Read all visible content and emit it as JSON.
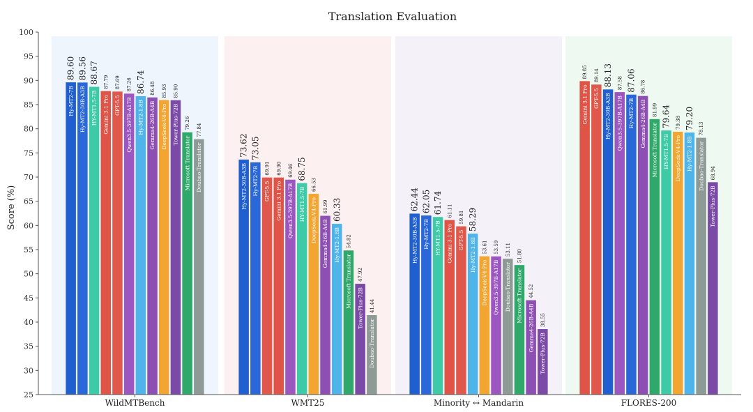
{
  "chart_data": {
    "type": "bar",
    "title": "Translation Evaluation",
    "ylabel": "Score (%)",
    "xlabel": "",
    "ylim": [
      25,
      100
    ],
    "yticks": [
      25,
      30,
      35,
      40,
      45,
      50,
      55,
      60,
      65,
      70,
      75,
      80,
      85,
      90,
      95,
      100
    ],
    "grid": false,
    "group_backgrounds": [
      "#eef5fc",
      "#fcf1f0",
      "#f4f1f9",
      "#eefaf1"
    ],
    "groups": [
      {
        "name": "WildMTBench",
        "bars": [
          {
            "model": "Hy-MT2-7B",
            "value": 89.6,
            "color": "#1f5fcf",
            "highlight": true
          },
          {
            "model": "Hy-MT2-30B-A3B",
            "value": 89.56,
            "color": "#2a67d8",
            "highlight": true
          },
          {
            "model": "HY-MT1.5-7B",
            "value": 88.67,
            "color": "#3ec9a7",
            "highlight": true
          },
          {
            "model": "Gemini 3.1 Pro",
            "value": 87.79,
            "color": "#df5447",
            "highlight": false
          },
          {
            "model": "GPT-5.5",
            "value": 87.69,
            "color": "#e0584b",
            "highlight": false
          },
          {
            "model": "Qwen3.5-397B-A17B",
            "value": 87.26,
            "color": "#9c56c0",
            "highlight": false
          },
          {
            "model": "Hy-MT2-1.8B",
            "value": 86.74,
            "color": "#4fb4ea",
            "highlight": true
          },
          {
            "model": "Gemma4-26B-A4B",
            "value": 86.48,
            "color": "#8e4fb5",
            "highlight": false
          },
          {
            "model": "DeepSeek-V4-Pro",
            "value": 85.93,
            "color": "#f2a531",
            "highlight": false
          },
          {
            "model": "Tower-Plus-72B",
            "value": 85.9,
            "color": "#7b4aa6",
            "highlight": false
          },
          {
            "model": "Microsoft Translator",
            "value": 79.26,
            "color": "#2fa86a",
            "highlight": false
          },
          {
            "model": "Doubao-Translator",
            "value": 77.84,
            "color": "#8e9a96",
            "highlight": false
          }
        ]
      },
      {
        "name": "WMT25",
        "bars": [
          {
            "model": "Hy-MT2-30B-A3B",
            "value": 73.62,
            "color": "#1f5fcf",
            "highlight": true
          },
          {
            "model": "Hy-MT2-7B",
            "value": 73.05,
            "color": "#2a67d8",
            "highlight": true
          },
          {
            "model": "GPT-5.5",
            "value": 69.91,
            "color": "#e0584b",
            "highlight": false
          },
          {
            "model": "Gemini 3.1 Pro",
            "value": 69.9,
            "color": "#df5447",
            "highlight": false
          },
          {
            "model": "Qwen3.5-397B-A17B",
            "value": 69.46,
            "color": "#9c56c0",
            "highlight": false
          },
          {
            "model": "HY-MT1.5-7B",
            "value": 68.75,
            "color": "#3ec9a7",
            "highlight": true
          },
          {
            "model": "DeepSeek-V4-Pro",
            "value": 66.53,
            "color": "#f2a531",
            "highlight": false
          },
          {
            "model": "Gemma4-26B-A4B",
            "value": 61.99,
            "color": "#8e4fb5",
            "highlight": false
          },
          {
            "model": "Hy-MT2-1.8B",
            "value": 60.33,
            "color": "#4fb4ea",
            "highlight": true
          },
          {
            "model": "Microsoft Translator",
            "value": 54.82,
            "color": "#2fa86a",
            "highlight": false
          },
          {
            "model": "Tower-Plus-72B",
            "value": 47.92,
            "color": "#7b4aa6",
            "highlight": false
          },
          {
            "model": "Doubao-Translator",
            "value": 41.44,
            "color": "#8e9a96",
            "highlight": false
          }
        ]
      },
      {
        "name": "Minority ↔ Mandarin",
        "bars": [
          {
            "model": "Hy-MT2-30B-A3B",
            "value": 62.44,
            "color": "#1f5fcf",
            "highlight": true
          },
          {
            "model": "Hy-MT2-7B",
            "value": 62.05,
            "color": "#2a67d8",
            "highlight": true
          },
          {
            "model": "HY-MT1.5-7B",
            "value": 61.74,
            "color": "#3ec9a7",
            "highlight": true
          },
          {
            "model": "Gemini 3.1 Pro",
            "value": 61.11,
            "color": "#df5447",
            "highlight": false
          },
          {
            "model": "GPT-5.5",
            "value": 59.81,
            "color": "#e0584b",
            "highlight": false
          },
          {
            "model": "Hy-MT2-1.8B",
            "value": 58.29,
            "color": "#4fb4ea",
            "highlight": true
          },
          {
            "model": "DeepSeek-V4-Pro",
            "value": 53.61,
            "color": "#f2a531",
            "highlight": false
          },
          {
            "model": "Qwen3.5-397B-A17B",
            "value": 53.59,
            "color": "#9c56c0",
            "highlight": false
          },
          {
            "model": "Doubao-Translator",
            "value": 53.11,
            "color": "#8e9a96",
            "highlight": false
          },
          {
            "model": "Microsoft Translator",
            "value": 51.8,
            "color": "#2fa86a",
            "highlight": false
          },
          {
            "model": "Gemma4-26B-A4B",
            "value": 44.52,
            "color": "#8e4fb5",
            "highlight": false
          },
          {
            "model": "Tower-Plus-72B",
            "value": 38.55,
            "color": "#7b4aa6",
            "highlight": false
          }
        ]
      },
      {
        "name": "FLORES-200",
        "bars": [
          {
            "model": "Gemini 3.1 Pro",
            "value": 89.85,
            "color": "#df5447",
            "highlight": false
          },
          {
            "model": "GPT-5.5",
            "value": 89.14,
            "color": "#e0584b",
            "highlight": false
          },
          {
            "model": "Hy-MT2-30B-A3B",
            "value": 88.13,
            "color": "#1f5fcf",
            "highlight": true
          },
          {
            "model": "Qwen3.5-397B-A17B",
            "value": 87.58,
            "color": "#9c56c0",
            "highlight": false
          },
          {
            "model": "Hy-MT2-7B",
            "value": 87.06,
            "color": "#2a67d8",
            "highlight": true
          },
          {
            "model": "Gemma4-26B-A4B",
            "value": 86.78,
            "color": "#8e4fb5",
            "highlight": false
          },
          {
            "model": "Microsoft Translator",
            "value": 81.99,
            "color": "#2fa86a",
            "highlight": false
          },
          {
            "model": "HY-MT1.5-7B",
            "value": 79.64,
            "color": "#3ec9a7",
            "highlight": true
          },
          {
            "model": "DeepSeek-V4-Pro",
            "value": 79.38,
            "color": "#f2a531",
            "highlight": false
          },
          {
            "model": "Hy-MT2-1.8B",
            "value": 79.2,
            "color": "#4fb4ea",
            "highlight": true
          },
          {
            "model": "Doubao-Translator",
            "value": 78.13,
            "color": "#8e9a96",
            "highlight": false
          },
          {
            "model": "Tower-Plus-72B",
            "value": 68.94,
            "color": "#7b4aa6",
            "highlight": false
          }
        ]
      }
    ]
  }
}
